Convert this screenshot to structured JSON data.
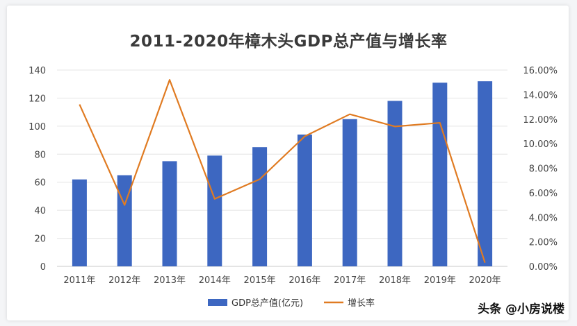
{
  "chart_data": {
    "type": "bar",
    "title": "2011-2020年樟木头GDP总产值与增长率",
    "categories": [
      "2011年",
      "2012年",
      "2013年",
      "2014年",
      "2015年",
      "2016年",
      "2017年",
      "2018年",
      "2019年",
      "2020年"
    ],
    "ylim": [
      0,
      140
    ],
    "y_ticks": [
      "0",
      "20",
      "40",
      "60",
      "80",
      "100",
      "120",
      "140"
    ],
    "y2lim": [
      0,
      16
    ],
    "y2_ticks": [
      "0.00%",
      "2.00%",
      "4.00%",
      "6.00%",
      "8.00%",
      "10.00%",
      "12.00%",
      "14.00%",
      "16.00%"
    ],
    "series": [
      {
        "name": "GDP总产值(亿元)",
        "type": "bar",
        "axis": "left",
        "color": "#3d67c1",
        "values": [
          62,
          65,
          75,
          79,
          85,
          94,
          105,
          118,
          131,
          132
        ]
      },
      {
        "name": "增长率",
        "type": "line",
        "axis": "right",
        "color": "#e07b22",
        "values": [
          13.2,
          5.0,
          15.2,
          5.5,
          7.1,
          10.6,
          12.4,
          11.4,
          11.7,
          0.3
        ]
      }
    ],
    "grid": true,
    "legend": "bottom"
  },
  "watermark": "头条 @小房说楼"
}
